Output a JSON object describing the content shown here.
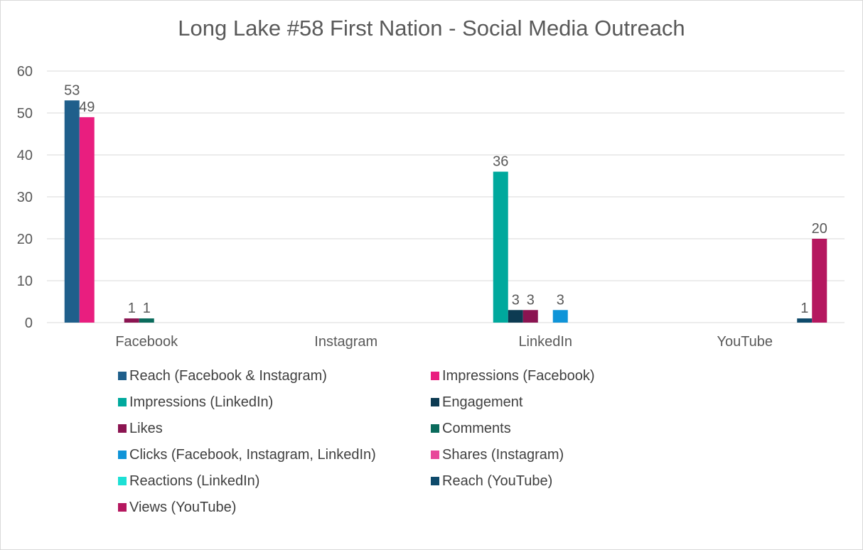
{
  "chart_data": {
    "type": "bar",
    "title": "Long Lake #58 First Nation - Social Media Outreach",
    "categories": [
      "Facebook",
      "Instagram",
      "LinkedIn",
      "YouTube"
    ],
    "ylim": [
      0,
      60
    ],
    "yticks": [
      0,
      10,
      20,
      30,
      40,
      50,
      60
    ],
    "grid": true,
    "legend_position": "bottom",
    "series": [
      {
        "name": "Reach (Facebook & Instagram)",
        "color": "#1f5f8b",
        "values": [
          53,
          null,
          null,
          null
        ]
      },
      {
        "name": "Impressions (Facebook)",
        "color": "#e91e7f",
        "values": [
          49,
          null,
          null,
          null
        ]
      },
      {
        "name": "Impressions (LinkedIn)",
        "color": "#00a99d",
        "values": [
          null,
          null,
          36,
          null
        ]
      },
      {
        "name": "Engagement",
        "color": "#0d3b52",
        "values": [
          null,
          null,
          3,
          null
        ]
      },
      {
        "name": "Likes",
        "color": "#8b1451",
        "values": [
          1,
          null,
          3,
          null
        ]
      },
      {
        "name": "Comments",
        "color": "#0a6b5c",
        "values": [
          1,
          null,
          null,
          null
        ]
      },
      {
        "name": "Clicks (Facebook, Instagram, LinkedIn)",
        "color": "#0f94d8",
        "values": [
          null,
          null,
          3,
          null
        ]
      },
      {
        "name": "Shares (Instagram)",
        "color": "#e8479a",
        "values": [
          null,
          null,
          null,
          null
        ]
      },
      {
        "name": "Reactions (LinkedIn)",
        "color": "#1de0d5",
        "values": [
          null,
          null,
          null,
          null
        ]
      },
      {
        "name": "Reach (YouTube)",
        "color": "#0e4a6b",
        "values": [
          null,
          null,
          null,
          1
        ]
      },
      {
        "name": "Views (YouTube)",
        "color": "#b5175f",
        "values": [
          null,
          null,
          null,
          20
        ]
      }
    ]
  }
}
